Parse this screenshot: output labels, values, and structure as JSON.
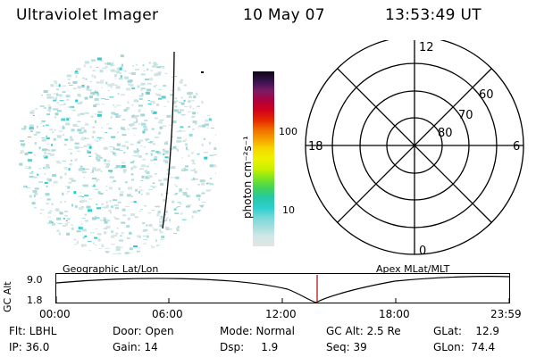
{
  "header": {
    "instrument": "Ultraviolet Imager",
    "date": "10 May 07",
    "time": "13:53:49 UT"
  },
  "colorbar": {
    "label": "photon cm⁻²s⁻¹",
    "tick_10": "10",
    "tick_100": "100",
    "colors": [
      "#e4e4e4",
      "#cfe8e8",
      "#a6dede",
      "#6fd8d6",
      "#2ecfcf",
      "#25c8a6",
      "#3fd25c",
      "#7ee620",
      "#c8f000",
      "#ecf200",
      "#f6d600",
      "#f7a200",
      "#f06a00",
      "#e52a00",
      "#d0001c",
      "#b0003a",
      "#7a1a64",
      "#3a1450",
      "#0c0614"
    ]
  },
  "polar_plot": {
    "mlt_12": "12",
    "mlt_18": "18",
    "mlt_6": "6",
    "mlt_0": "0",
    "lat_60": "60",
    "lat_70": "70",
    "lat_80": "80"
  },
  "timeline": {
    "y_axis_label": "GC Alt",
    "y_top": "9.0",
    "y_bottom": "1.8",
    "left_label": "Geographic Lat/Lon",
    "right_label": "Apex MLat/MLT",
    "ticks": [
      "00:00",
      "06:00",
      "12:00",
      "18:00",
      "23:59"
    ]
  },
  "info": {
    "flt": "Flt: LBHL",
    "ip": "IP: 36.0",
    "door": "Door: Open",
    "gain": "Gain: 14",
    "mode": "Mode: Normal",
    "dsp": "Dsp:     1.9",
    "gc_alt": "GC Alt: 2.5 Re",
    "seq": "Seq: 39",
    "glat": "GLat:    12.9",
    "glon": "GLon:  74.4"
  }
}
